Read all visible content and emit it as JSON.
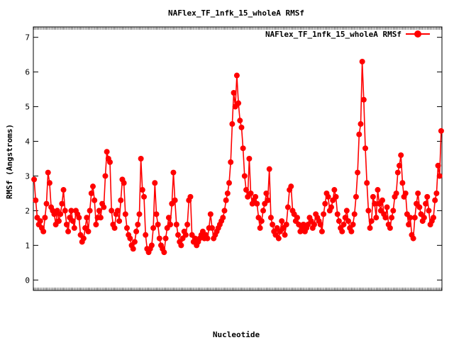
{
  "chart_data": {
    "type": "line",
    "title": "NAFlex_TF_1nfk_15_wholeA RMSf",
    "xlabel": "Nucleotide",
    "ylabel": "RMSf (Angstroms)",
    "ylim": [
      -0.3,
      7.3
    ],
    "yticks": [
      0,
      1,
      2,
      3,
      4,
      5,
      6,
      7
    ],
    "x_tick_labels_note": "",
    "legend": "top-right",
    "grid": false,
    "colors": {
      "series": "#ff0000",
      "axis": "#000000"
    },
    "series": [
      {
        "name": "NAFlex_TF_1nfk_15_wholeA RMSf",
        "values": [
          2.9,
          2.3,
          1.8,
          1.6,
          1.7,
          1.5,
          1.4,
          1.8,
          2.2,
          3.1,
          2.8,
          2.1,
          2.0,
          1.9,
          1.6,
          2.0,
          1.7,
          1.9,
          2.2,
          2.6,
          2.0,
          1.6,
          1.4,
          1.8,
          2.0,
          1.7,
          1.5,
          2.0,
          1.9,
          1.8,
          1.3,
          1.1,
          1.2,
          1.5,
          1.8,
          1.4,
          2.0,
          2.5,
          2.7,
          2.3,
          1.6,
          1.8,
          2.0,
          1.8,
          2.2,
          2.1,
          3.0,
          3.7,
          3.5,
          3.4,
          2.0,
          1.6,
          1.5,
          1.9,
          2.0,
          1.7,
          2.3,
          2.9,
          2.8,
          1.9,
          1.5,
          1.3,
          1.2,
          1.0,
          0.9,
          1.1,
          1.4,
          1.6,
          1.9,
          3.5,
          2.6,
          2.4,
          1.3,
          0.9,
          0.8,
          0.9,
          1.0,
          1.5,
          2.8,
          1.9,
          1.6,
          1.2,
          1.0,
          0.9,
          0.8,
          1.2,
          1.5,
          1.8,
          1.6,
          2.2,
          3.1,
          2.3,
          1.6,
          1.3,
          1.1,
          1.0,
          1.2,
          1.4,
          1.3,
          1.6,
          2.3,
          2.4,
          1.3,
          1.1,
          1.2,
          1.0,
          1.1,
          1.2,
          1.3,
          1.4,
          1.2,
          1.3,
          1.2,
          1.5,
          1.9,
          1.5,
          1.2,
          1.3,
          1.4,
          1.5,
          1.6,
          1.7,
          1.8,
          2.0,
          2.3,
          2.5,
          2.8,
          3.4,
          4.5,
          5.4,
          5.0,
          5.9,
          5.1,
          4.6,
          4.4,
          3.8,
          3.0,
          2.6,
          2.4,
          3.5,
          2.5,
          2.2,
          2.3,
          2.4,
          2.2,
          1.8,
          1.5,
          1.7,
          2.0,
          2.2,
          2.5,
          2.3,
          3.2,
          1.8,
          1.6,
          1.4,
          1.3,
          1.5,
          1.2,
          1.4,
          1.7,
          1.5,
          1.3,
          1.6,
          2.1,
          2.6,
          2.7,
          2.0,
          1.9,
          1.7,
          1.8,
          1.6,
          1.4,
          1.5,
          1.6,
          1.4,
          1.5,
          1.6,
          1.8,
          1.7,
          1.5,
          1.6,
          1.9,
          1.8,
          1.7,
          1.6,
          1.4,
          1.9,
          2.2,
          2.5,
          2.4,
          2.0,
          2.1,
          2.3,
          2.6,
          2.4,
          1.9,
          1.7,
          1.5,
          1.4,
          1.6,
          1.8,
          2.0,
          1.7,
          1.5,
          1.4,
          1.6,
          1.9,
          2.4,
          3.1,
          4.2,
          4.5,
          6.3,
          5.2,
          3.8,
          2.8,
          2.0,
          1.5,
          1.7,
          2.4,
          2.2,
          1.8,
          2.6,
          2.2,
          2.0,
          2.3,
          1.9,
          1.8,
          2.1,
          1.6,
          1.5,
          1.8,
          2.0,
          2.4,
          2.5,
          3.1,
          3.3,
          3.6,
          2.8,
          2.4,
          2.5,
          1.9,
          1.6,
          1.8,
          1.3,
          1.2,
          1.8,
          2.2,
          2.5,
          2.1,
          1.9,
          1.7,
          1.8,
          2.2,
          2.4,
          2.0,
          1.6,
          1.7,
          1.8,
          2.3,
          2.5,
          3.3,
          3.0,
          4.3
        ]
      }
    ]
  }
}
